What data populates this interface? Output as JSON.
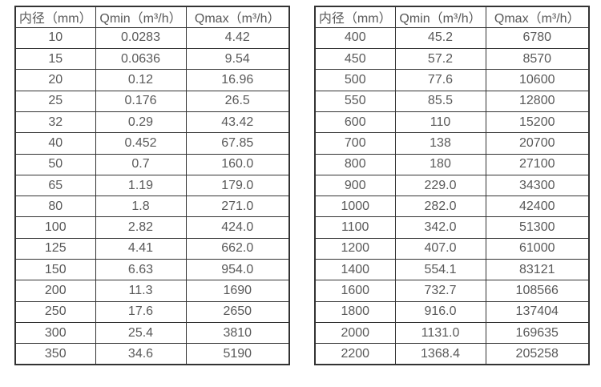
{
  "colors": {
    "border": "#333333",
    "text": "#595959",
    "background": "#ffffff"
  },
  "tables": [
    {
      "headers": [
        "内径（mm）",
        "Qmin（m³/h）",
        "Qmax（m³/h）"
      ],
      "rows": [
        [
          "10",
          "0.0283",
          "4.42"
        ],
        [
          "15",
          "0.0636",
          "9.54"
        ],
        [
          "20",
          "0.12",
          "16.96"
        ],
        [
          "25",
          "0.176",
          "26.5"
        ],
        [
          "32",
          "0.29",
          "43.42"
        ],
        [
          "40",
          "0.452",
          "67.85"
        ],
        [
          "50",
          "0.7",
          "160.0"
        ],
        [
          "65",
          "1.19",
          "179.0"
        ],
        [
          "80",
          "1.8",
          "271.0"
        ],
        [
          "100",
          "2.82",
          "424.0"
        ],
        [
          "125",
          "4.41",
          "662.0"
        ],
        [
          "150",
          "6.63",
          "954.0"
        ],
        [
          "200",
          "11.3",
          "1690"
        ],
        [
          "250",
          "17.6",
          "2650"
        ],
        [
          "300",
          "25.4",
          "3810"
        ],
        [
          "350",
          "34.6",
          "5190"
        ]
      ]
    },
    {
      "headers": [
        "内径（mm）",
        "Qmin（m³/h）",
        "Qmax（m³/h）"
      ],
      "rows": [
        [
          "400",
          "45.2",
          "6780"
        ],
        [
          "450",
          "57.2",
          "8570"
        ],
        [
          "500",
          "77.6",
          "10600"
        ],
        [
          "550",
          "85.5",
          "12800"
        ],
        [
          "600",
          "110",
          "15200"
        ],
        [
          "700",
          "138",
          "20700"
        ],
        [
          "800",
          "180",
          "27100"
        ],
        [
          "900",
          "229.0",
          "34300"
        ],
        [
          "1000",
          "282.0",
          "42400"
        ],
        [
          "1100",
          "342.0",
          "51300"
        ],
        [
          "1200",
          "407.0",
          "61000"
        ],
        [
          "1400",
          "554.1",
          "83121"
        ],
        [
          "1600",
          "732.7",
          "108566"
        ],
        [
          "1800",
          "916.0",
          "137404"
        ],
        [
          "2000",
          "1131.0",
          "169635"
        ],
        [
          "2200",
          "1368.4",
          "205258"
        ]
      ]
    }
  ]
}
